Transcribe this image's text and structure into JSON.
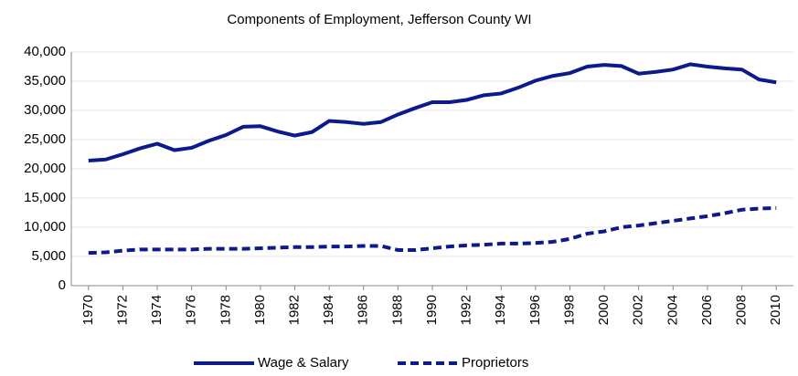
{
  "chart_data": {
    "type": "line",
    "title": "Components of Employment, Jefferson County WI",
    "x": [
      1970,
      1971,
      1972,
      1973,
      1974,
      1975,
      1976,
      1977,
      1978,
      1979,
      1980,
      1981,
      1982,
      1983,
      1984,
      1985,
      1986,
      1987,
      1988,
      1989,
      1990,
      1991,
      1992,
      1993,
      1994,
      1995,
      1996,
      1997,
      1998,
      1999,
      2000,
      2001,
      2002,
      2003,
      2004,
      2005,
      2006,
      2007,
      2008,
      2009,
      2010
    ],
    "series": [
      {
        "name": "Wage & Salary",
        "color": "#0d1a8c",
        "style": "solid",
        "values": [
          21400,
          21600,
          22500,
          23500,
          24300,
          23200,
          23600,
          24800,
          25800,
          27200,
          27300,
          26400,
          25700,
          26300,
          28200,
          28000,
          27700,
          28000,
          29300,
          30400,
          31400,
          31400,
          31800,
          32600,
          32900,
          33900,
          35100,
          35900,
          36400,
          37500,
          37800,
          37600,
          36300,
          36600,
          37000,
          37900,
          37500,
          37200,
          37000,
          35300,
          34800
        ]
      },
      {
        "name": "Proprietors",
        "color": "#0d1a8c",
        "style": "dashed",
        "values": [
          5600,
          5700,
          6000,
          6200,
          6200,
          6200,
          6200,
          6300,
          6300,
          6300,
          6400,
          6500,
          6600,
          6600,
          6700,
          6700,
          6800,
          6800,
          6100,
          6100,
          6400,
          6700,
          6900,
          7000,
          7200,
          7200,
          7300,
          7500,
          8000,
          8900,
          9300,
          10000,
          10300,
          10700,
          11100,
          11500,
          11900,
          12400,
          13000,
          13200,
          13300
        ]
      }
    ],
    "xlim": [
      1969,
      2011
    ],
    "xticks": [
      1970,
      1972,
      1974,
      1976,
      1978,
      1980,
      1982,
      1984,
      1986,
      1988,
      1990,
      1992,
      1994,
      1996,
      1998,
      2000,
      2002,
      2004,
      2006,
      2008,
      2010
    ],
    "ylim": [
      0,
      40000
    ],
    "yticks": [
      0,
      {
        "value": 5000,
        "label": "5,000"
      },
      {
        "value": 10000,
        "label": "10,000"
      },
      {
        "value": 15000,
        "label": "15,000"
      },
      {
        "value": 20000,
        "label": "20,000"
      },
      {
        "value": 25000,
        "label": "25,000"
      },
      {
        "value": 30000,
        "label": "30,000"
      },
      {
        "value": 35000,
        "label": "35,000"
      },
      {
        "value": 40000,
        "label": "40,000"
      }
    ],
    "grid": true,
    "legend": "bottom"
  }
}
